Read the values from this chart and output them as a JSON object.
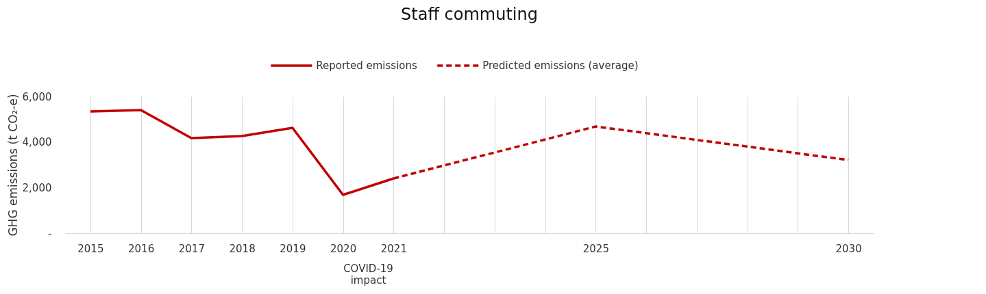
{
  "chart_data": {
    "type": "line",
    "title": "Staff commuting",
    "ylabel": "GHG emissions (t CO₂-e)",
    "categories": [
      "2015",
      "2016",
      "2017",
      "2018",
      "2019",
      "2020",
      "2021",
      null,
      null,
      null,
      "2025",
      null,
      null,
      null,
      null,
      "2030"
    ],
    "series": [
      {
        "name": "Reported emissions",
        "color": "#c00000",
        "line_style": "solid",
        "values": [
          5340,
          5400,
          4170,
          4260,
          4620,
          1680,
          2400,
          null,
          null,
          null,
          null,
          null,
          null,
          null,
          null,
          null
        ]
      },
      {
        "name": "Predicted emissions (average)",
        "color": "#c00000",
        "line_style": "dashed",
        "values": [
          null,
          null,
          null,
          null,
          null,
          null,
          2400,
          2970,
          3540,
          4110,
          4680,
          4390,
          4090,
          3800,
          3500,
          3210
        ]
      }
    ],
    "ylim": [
      0,
      6000
    ],
    "yticks": [
      {
        "value": 0,
        "label": "-"
      },
      {
        "value": 2000,
        "label": "2,000"
      },
      {
        "value": 4000,
        "label": "4,000"
      },
      {
        "value": 6000,
        "label": "6,000"
      }
    ],
    "grid": "x",
    "legend": "top",
    "marker": "none",
    "annotations": [
      "COVID-19 impact"
    ]
  }
}
